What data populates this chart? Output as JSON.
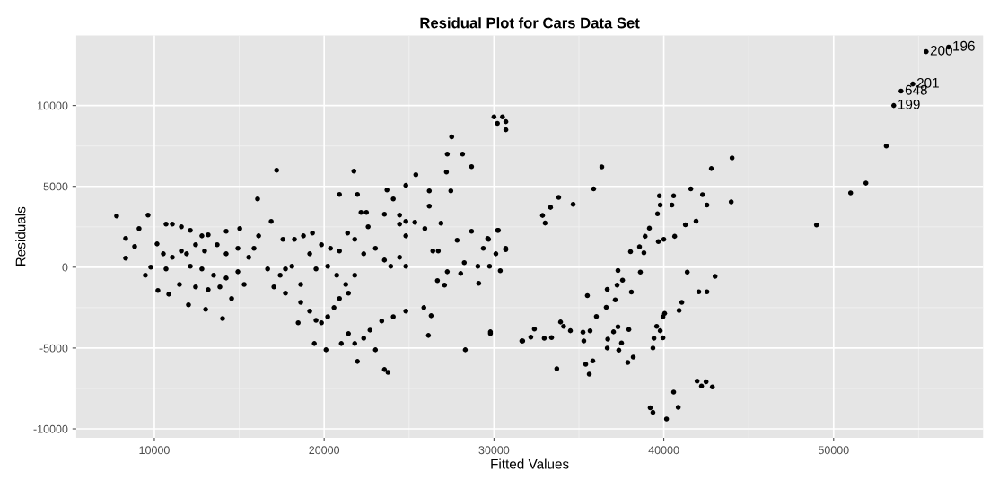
{
  "chart_data": {
    "type": "scatter",
    "title": "Residual Plot for Cars Data Set",
    "xlabel": "Fitted Values",
    "ylabel": "Residuals",
    "xlim": [
      5400,
      58800
    ],
    "ylim": [
      -10550,
      14330
    ],
    "xticks": [
      10000,
      20000,
      30000,
      40000,
      50000
    ],
    "yticks": [
      -10000,
      -5000,
      0,
      5000,
      10000
    ],
    "grid": true,
    "marker": "circle",
    "series": [
      {
        "color": "#000000",
        "x": [
          7780,
          9630,
          8310,
          9100,
          8840,
          8310,
          9470,
          10210,
          9790,
          10690,
          11060,
          11590,
          12120,
          12800,
          13170,
          14230,
          15030,
          10160,
          10530,
          11060,
          11590,
          11900,
          12430,
          12960,
          13700,
          14230,
          14920,
          12120,
          12800,
          13490,
          14230,
          14920,
          10690,
          11480,
          10850,
          12010,
          13020,
          14020,
          12430,
          13170,
          13860,
          14550,
          15290,
          15560,
          15870,
          16140,
          16880,
          16080,
          17200,
          16670,
          17410,
          17720,
          18100,
          17040,
          17720,
          17570,
          18250,
          18780,
          19310,
          19150,
          19840,
          20370,
          20900,
          19520,
          20210,
          20740,
          21270,
          21800,
          18620,
          19150,
          19520,
          19840,
          20210,
          20580,
          20900,
          21430,
          18620,
          18470,
          19420,
          20110,
          21010,
          21800,
          21960,
          21430,
          22330,
          22700,
          23020,
          23390,
          23550,
          23760,
          24070,
          24810,
          25870,
          26300,
          26140,
          28310,
          29790,
          31690,
          20900,
          21750,
          21960,
          22170,
          22490,
          22590,
          21380,
          21800,
          22330,
          23020,
          23550,
          23920,
          23550,
          23700,
          24070,
          24440,
          24440,
          24810,
          25340,
          24810,
          24810,
          24440,
          25400,
          24810,
          26190,
          26190,
          25930,
          26880,
          26400,
          26720,
          27250,
          27090,
          26670,
          27250,
          28150,
          28680,
          27200,
          27460,
          27510,
          27830,
          28040,
          28250,
          28680,
          29050,
          29100,
          29370,
          29680,
          29740,
          30110,
          30210,
          30370,
          30690,
          30000,
          30200,
          30500,
          30700,
          30700,
          30260,
          29630,
          30690,
          29790,
          32170,
          32380,
          32960,
          33390,
          33700,
          33920,
          34100,
          34500,
          35240,
          35290,
          35400,
          35610,
          35660,
          35820,
          35500,
          36030,
          36610,
          36670,
          36700,
          36670,
          37040,
          37140,
          37250,
          37300,
          37300,
          37350,
          37510,
          37570,
          37880,
          37940,
          38040,
          38090,
          38200,
          38570,
          38620,
          38830,
          38900,
          39150,
          39200,
          39360,
          39360,
          39420,
          39580,
          39630,
          39680,
          39740,
          39790,
          39790,
          39950,
          39950,
          40050,
          40000,
          40160,
          40480,
          40580,
          40580,
          40640,
          40850,
          40900,
          41060,
          41270,
          41380,
          41590,
          41900,
          41960,
          42060,
          42220,
          42280,
          42490,
          42540,
          42540,
          42800,
          42860,
          43020,
          43970,
          44020,
          36350,
          35870,
          33810,
          33330,
          32860,
          33010,
          34660,
          31640,
          48990,
          51000,
          51900,
          53100,
          53540,
          53970,
          54660,
          55450,
          56770
        ],
        "values": [
          3170,
          3220,
          1780,
          2390,
          1280,
          560,
          -500,
          -1440,
          0,
          2670,
          2670,
          2500,
          2280,
          1940,
          2000,
          2220,
          2390,
          1440,
          830,
          610,
          1000,
          830,
          1390,
          1000,
          1390,
          830,
          1170,
          60,
          -110,
          -500,
          -670,
          -280,
          -110,
          -1060,
          -1670,
          -2330,
          -2610,
          -3170,
          -1220,
          -1390,
          -1220,
          -1940,
          -1060,
          610,
          1170,
          1940,
          2830,
          4220,
          6000,
          -110,
          -500,
          -110,
          60,
          -1220,
          -1610,
          1720,
          1720,
          1940,
          2110,
          830,
          1390,
          1170,
          1000,
          -110,
          60,
          -500,
          -1060,
          -500,
          -2170,
          -2720,
          -3280,
          -3440,
          -3060,
          -2500,
          -1940,
          -1610,
          -1060,
          -3440,
          -4720,
          -5110,
          -4720,
          -4720,
          -5830,
          -4110,
          -4390,
          -3890,
          -5110,
          -3330,
          -6330,
          -6500,
          -3060,
          -2720,
          -2500,
          -3000,
          -4220,
          -5110,
          -4000,
          -4560,
          4500,
          5940,
          4500,
          3390,
          3390,
          2500,
          2110,
          1720,
          830,
          1170,
          440,
          60,
          3280,
          4780,
          4220,
          3220,
          2670,
          2830,
          2780,
          1940,
          60,
          610,
          5720,
          5060,
          4720,
          3780,
          2390,
          2720,
          1000,
          1000,
          -280,
          -1110,
          -830,
          7000,
          7000,
          6220,
          5890,
          4720,
          8060,
          1670,
          -390,
          280,
          2220,
          60,
          -1000,
          1170,
          1720,
          60,
          830,
          2280,
          -220,
          1170,
          9300,
          8900,
          9300,
          8500,
          9000,
          2280,
          1780,
          1090,
          -4110,
          -4330,
          -3830,
          -4390,
          -4350,
          -6280,
          -3390,
          -3660,
          -3930,
          -4020,
          -4560,
          -6000,
          -6610,
          -3940,
          -5800,
          -1760,
          -3050,
          -2480,
          -1370,
          -4450,
          -5000,
          -4000,
          -2020,
          -1110,
          -200,
          -3690,
          -5130,
          -4690,
          -800,
          -5890,
          -3850,
          960,
          -1540,
          -5560,
          1260,
          -300,
          890,
          1910,
          2410,
          -8700,
          -8980,
          -5000,
          -4390,
          -3660,
          3300,
          1590,
          4410,
          3850,
          -3930,
          -4370,
          -3060,
          -2860,
          1720,
          -9390,
          3850,
          4410,
          -7720,
          1910,
          -8670,
          -2670,
          -2170,
          2630,
          -300,
          4850,
          2850,
          -7040,
          -1520,
          -7350,
          4480,
          -7090,
          3850,
          -1520,
          6100,
          -7410,
          -570,
          4040,
          6760,
          6200,
          4850,
          4320,
          3700,
          3200,
          2730,
          3890,
          -4560,
          2610,
          4600,
          5200,
          7500,
          10000,
          10890,
          11330,
          13330,
          13610
        ]
      }
    ],
    "annotations": [
      {
        "text": "199",
        "x": 53540,
        "y": 10000
      },
      {
        "text": "648",
        "x": 53970,
        "y": 10890
      },
      {
        "text": "201",
        "x": 54660,
        "y": 11330
      },
      {
        "text": "200",
        "x": 55450,
        "y": 13330
      },
      {
        "text": "196",
        "x": 56770,
        "y": 13610
      }
    ]
  }
}
